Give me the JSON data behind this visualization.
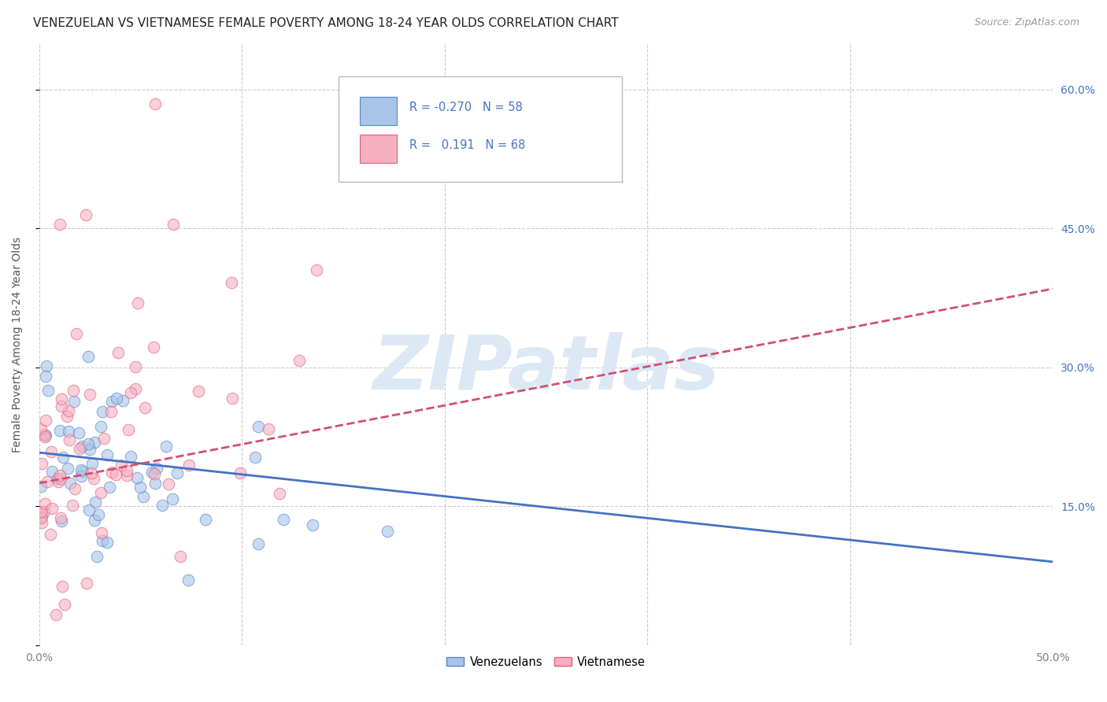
{
  "title": "VENEZUELAN VS VIETNAMESE FEMALE POVERTY AMONG 18-24 YEAR OLDS CORRELATION CHART",
  "source": "Source: ZipAtlas.com",
  "ylabel": "Female Poverty Among 18-24 Year Olds",
  "xlim": [
    0.0,
    0.5
  ],
  "ylim": [
    0.0,
    0.65
  ],
  "yticks": [
    0.0,
    0.15,
    0.3,
    0.45,
    0.6
  ],
  "xticks": [
    0.0,
    0.1,
    0.2,
    0.3,
    0.4,
    0.5
  ],
  "xtick_labels": [
    "0.0%",
    "",
    "",
    "",
    "",
    "50.0%"
  ],
  "right_ytick_labels": [
    "",
    "15.0%",
    "30.0%",
    "45.0%",
    "60.0%"
  ],
  "venezuelan_R": -0.27,
  "venezuelan_N": 58,
  "vietnamese_R": 0.191,
  "vietnamese_N": 68,
  "venezuelan_color": "#a8c4e8",
  "venezuelan_edge_color": "#5585c8",
  "venezuelan_line_color": "#4472c4",
  "vietnamese_color": "#f5b0c0",
  "vietnamese_edge_color": "#e06080",
  "vietnamese_line_color": "#d05070",
  "background_color": "#ffffff",
  "grid_color": "#cccccc",
  "watermark_text": "ZIPatlas",
  "watermark_color": "#dde8f5",
  "title_fontsize": 11,
  "axis_label_fontsize": 10,
  "tick_fontsize": 10,
  "source_fontsize": 9,
  "scatter_alpha": 0.6,
  "scatter_size": 110
}
